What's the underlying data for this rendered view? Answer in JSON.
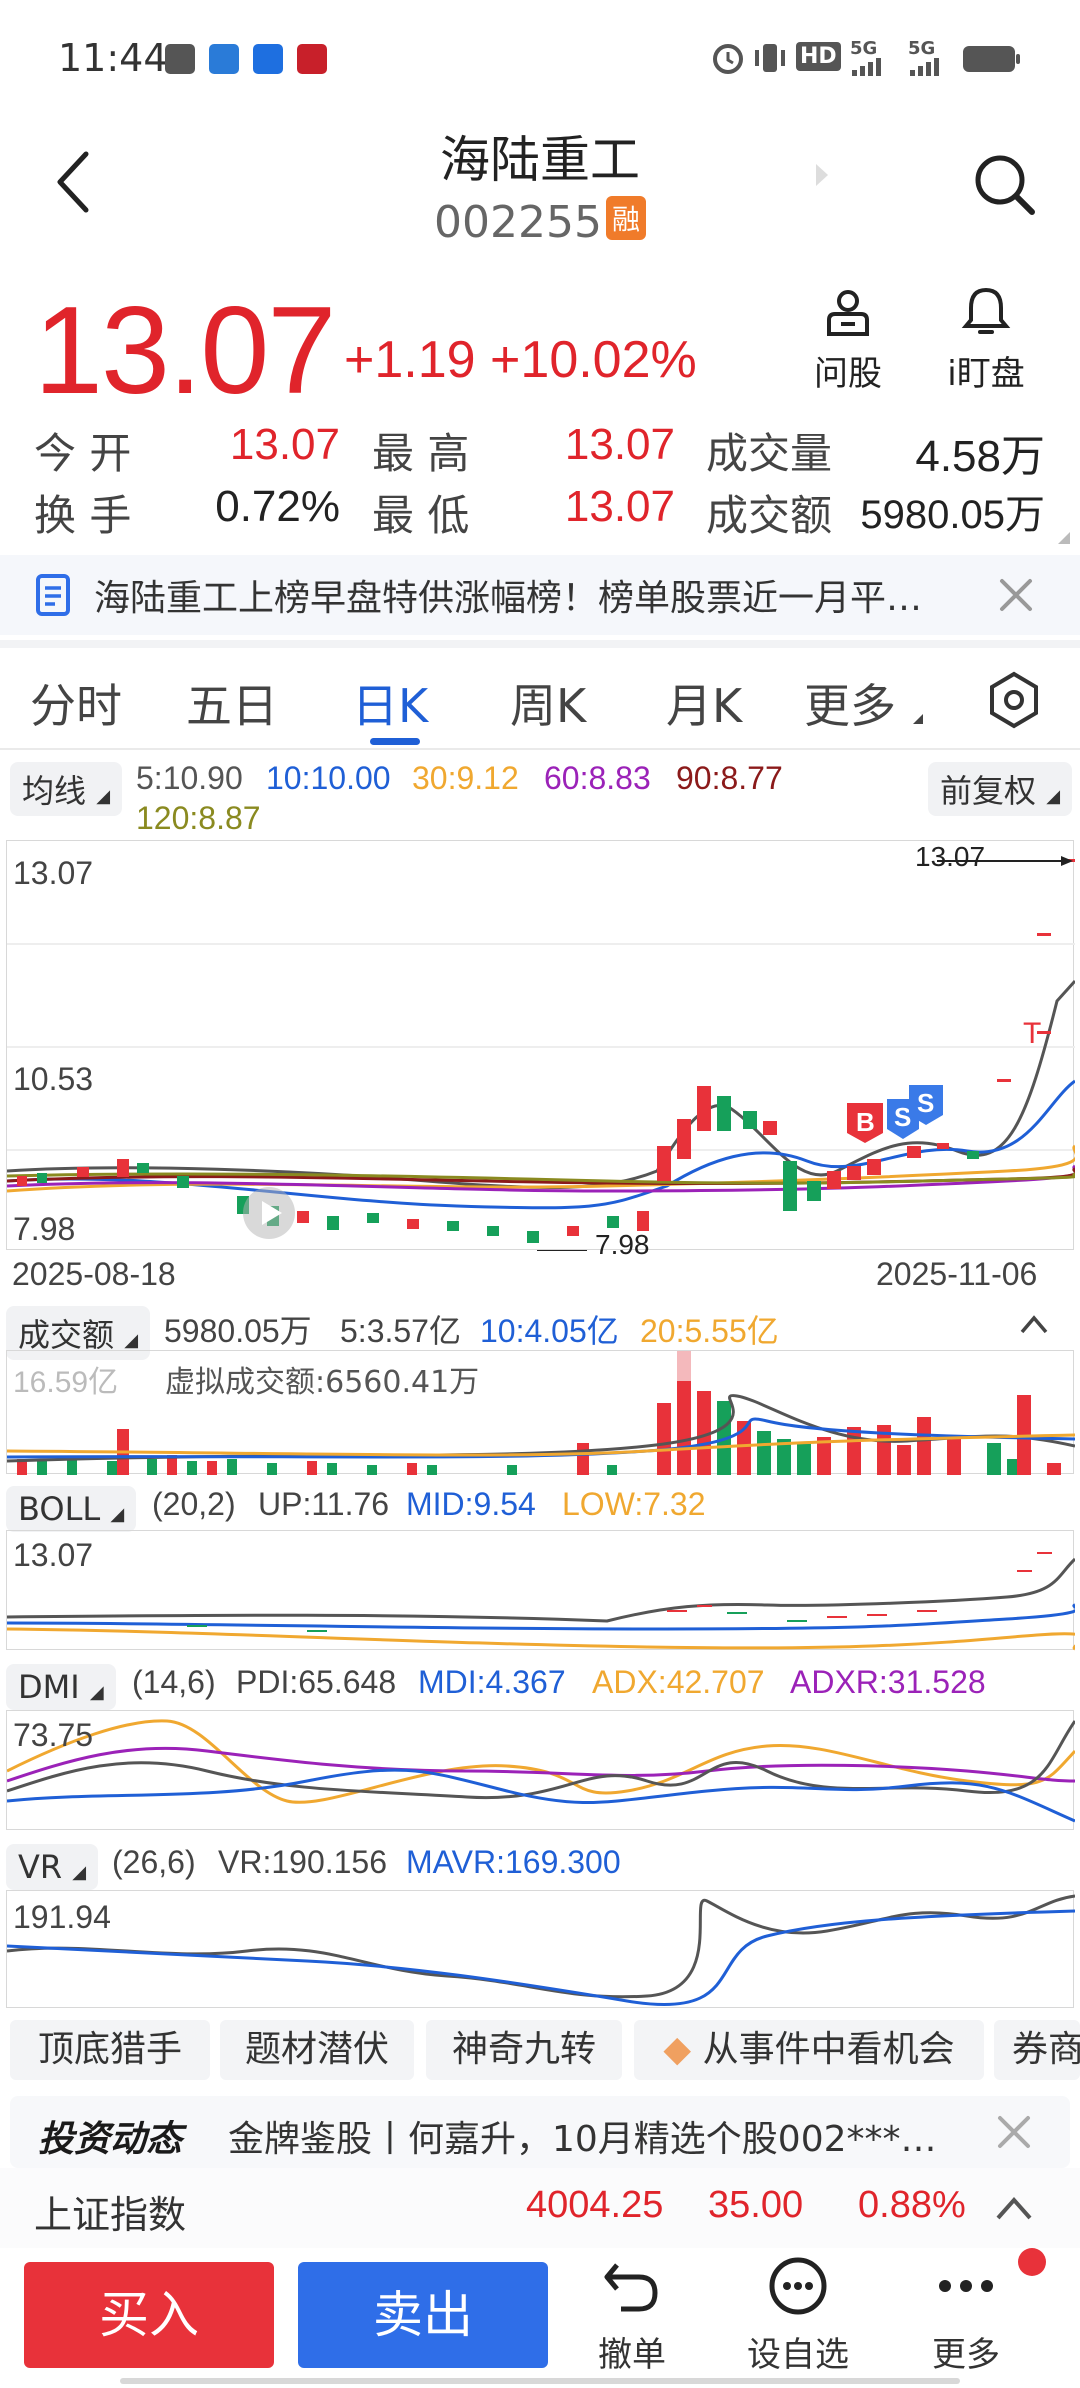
{
  "status": {
    "time": "11:44",
    "net1": "HD",
    "net2": "5G",
    "net3": "5G"
  },
  "header": {
    "title": "海陆重工",
    "code": "002255",
    "badge": "融"
  },
  "quote": {
    "price": "13.07",
    "change": "+1.19",
    "change_pct": "+10.02%",
    "btn_ask": "问股",
    "btn_watch": "i盯盘",
    "stats": [
      {
        "label": "今 开",
        "value": "13.07",
        "red": true
      },
      {
        "label": "最 高",
        "value": "13.07",
        "red": true
      },
      {
        "label": "成交量",
        "value": "4.58万",
        "red": false
      },
      {
        "label": "换 手",
        "value": "0.72%",
        "red": false
      },
      {
        "label": "最 低",
        "value": "13.07",
        "red": true
      },
      {
        "label": "成交额",
        "value": "5980.05万",
        "red": false
      }
    ]
  },
  "news": {
    "text": "海陆重工上榜早盘特供涨幅榜！榜单股票近一月平…"
  },
  "tabs": [
    "分时",
    "五日",
    "日K",
    "周K",
    "月K",
    "更多"
  ],
  "ma": {
    "pill": "均线",
    "adjust": "前复权",
    "items": [
      {
        "text": "5:10.90",
        "color": "#555555"
      },
      {
        "text": "10:10.00",
        "color": "#1f5fd6"
      },
      {
        "text": "30:9.12",
        "color": "#f0a830"
      },
      {
        "text": "60:8.83",
        "color": "#9b22b8"
      },
      {
        "text": "90:8.77",
        "color": "#8b1a1a"
      },
      {
        "text": "120:8.87",
        "color": "#8a8a20"
      }
    ]
  },
  "kchart": {
    "y_high": "13.07",
    "y_mid": "10.53",
    "y_low": "7.98",
    "max_label": "13.07",
    "min_label": "7.98",
    "date_start": "2025-08-18",
    "date_end": "2025-11-06"
  },
  "volume": {
    "pill": "成交额",
    "total": "5980.05万",
    "m5": "5:3.57亿",
    "m10": "10:4.05亿",
    "m20": "20:5.55亿",
    "max_label": "16.59亿",
    "virtual": "虚拟成交额:6560.41万"
  },
  "boll": {
    "pill": "BOLL",
    "param": "(20,2)",
    "up": "UP:11.76",
    "mid": "MID:9.54",
    "low": "LOW:7.32",
    "y": "13.07"
  },
  "dmi": {
    "pill": "DMI",
    "param": "(14,6)",
    "pdi": "PDI:65.648",
    "mdi": "MDI:4.367",
    "adx": "ADX:42.707",
    "adxr": "ADXR:31.528",
    "y": "73.75"
  },
  "vr": {
    "pill": "VR",
    "param": "(26,6)",
    "vr": "VR:190.156",
    "mavr": "MAVR:169.300",
    "y": "191.94"
  },
  "features": [
    "顶底猎手",
    "题材潜伏",
    "神奇九转",
    "从事件中看机会",
    "券商"
  ],
  "invest": {
    "logo": "投资动态",
    "text": "金牌鉴股丨何嘉升，10月精选个股002***…"
  },
  "index": {
    "name": "上证指数",
    "value": "4004.25",
    "change": "35.00",
    "pct": "0.88%"
  },
  "bottom": {
    "buy": "买入",
    "sell": "卖出",
    "cancel": "撤单",
    "watchlist": "设自选",
    "more": "更多"
  }
}
